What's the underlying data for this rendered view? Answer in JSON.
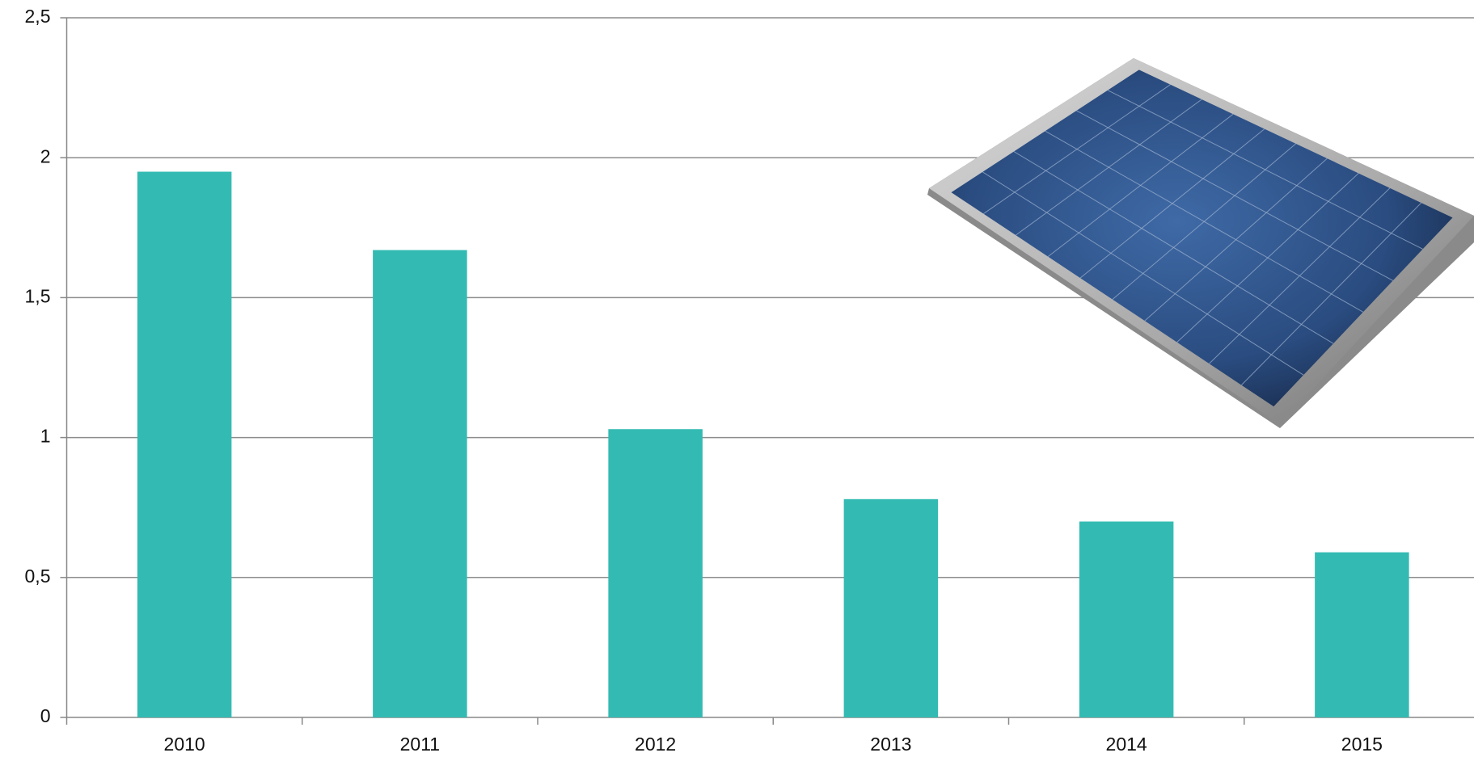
{
  "chart_data": {
    "type": "bar",
    "categories": [
      "2010",
      "2011",
      "2012",
      "2013",
      "2014",
      "2015"
    ],
    "values": [
      1.95,
      1.67,
      1.03,
      0.78,
      0.7,
      0.59
    ],
    "color": "#33bbb3",
    "ylim": [
      0,
      2.5
    ],
    "yticks": [
      0,
      {
        "value": 0.5,
        "label": "0,5"
      },
      1,
      {
        "value": 1.5,
        "label": "1,5"
      },
      2,
      {
        "value": 2.5,
        "label": "2,5"
      }
    ],
    "grid": true
  }
}
